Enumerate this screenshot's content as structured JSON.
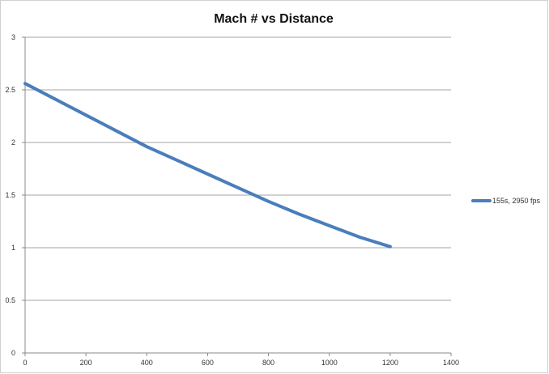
{
  "chart_data": {
    "type": "line",
    "title": "Mach # vs Distance",
    "xlabel": "",
    "ylabel": "",
    "xlim": [
      0,
      1400
    ],
    "ylim": [
      0,
      3
    ],
    "x_ticks": [
      "0",
      "200",
      "400",
      "600",
      "800",
      "1000",
      "1200",
      "1400"
    ],
    "y_ticks": [
      "0",
      "0.5",
      "1",
      "1.5",
      "2",
      "2.5",
      "3"
    ],
    "grid": "horizontal",
    "legend_position": "right",
    "series": [
      {
        "name": "155s, 2950 fps",
        "color": "#4a7ebb",
        "x": [
          0,
          100,
          200,
          300,
          400,
          500,
          600,
          700,
          800,
          900,
          1000,
          1100,
          1200
        ],
        "y": [
          2.56,
          2.41,
          2.26,
          2.11,
          1.96,
          1.83,
          1.7,
          1.57,
          1.44,
          1.32,
          1.21,
          1.1,
          1.01
        ]
      }
    ]
  }
}
